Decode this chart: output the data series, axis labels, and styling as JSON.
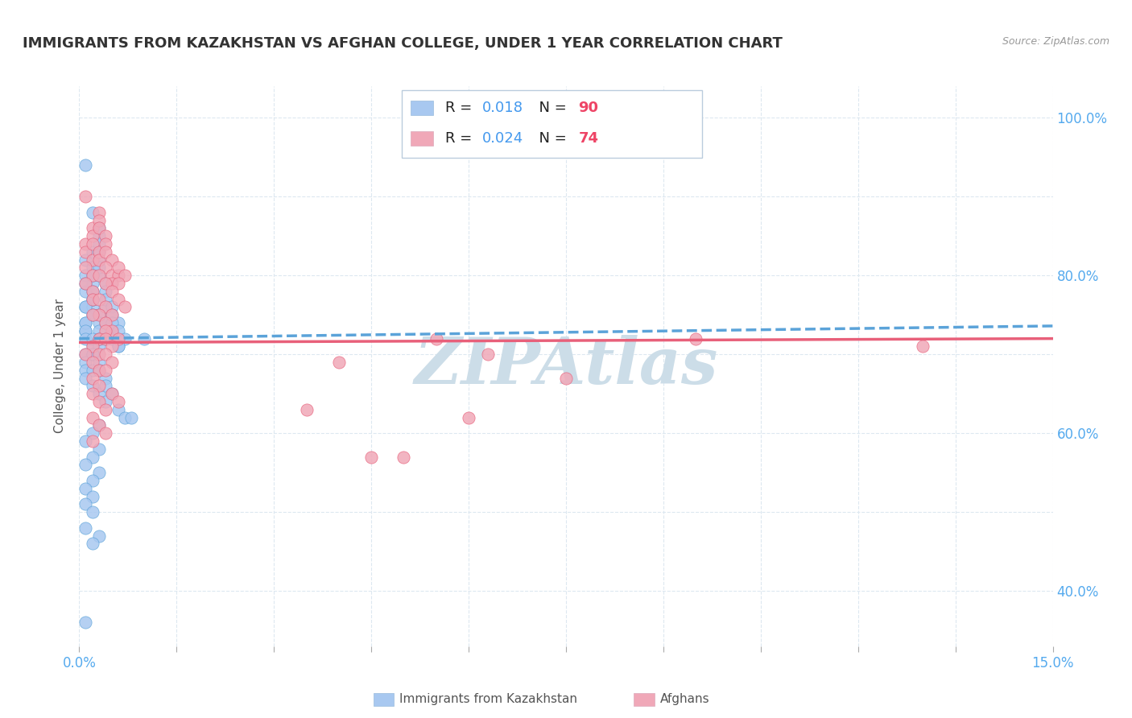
{
  "title": "IMMIGRANTS FROM KAZAKHSTAN VS AFGHAN COLLEGE, UNDER 1 YEAR CORRELATION CHART",
  "source": "Source: ZipAtlas.com",
  "ylabel": "College, Under 1 year",
  "xlim": [
    0.0,
    0.15
  ],
  "ylim": [
    0.33,
    1.04
  ],
  "xticks": [
    0.0,
    0.015,
    0.03,
    0.045,
    0.06,
    0.075,
    0.09,
    0.105,
    0.12,
    0.135,
    0.15
  ],
  "xtick_labels": [
    "0.0%",
    "",
    "",
    "",
    "",
    "",
    "",
    "",
    "",
    "",
    "15.0%"
  ],
  "yticks_right": [
    0.4,
    0.6,
    0.8,
    1.0
  ],
  "ytick_labels_right": [
    "40.0%",
    "60.0%",
    "80.0%",
    "100.0%"
  ],
  "series1_name": "Immigrants from Kazakhstan",
  "series1_color": "#a8c8f0",
  "series1_line_color": "#5ba3d9",
  "series1_R": 0.018,
  "series1_N": 90,
  "series2_name": "Afghans",
  "series2_color": "#f0a8b8",
  "series2_line_color": "#e8607a",
  "series2_R": 0.024,
  "series2_N": 74,
  "legend_color": "#4499ee",
  "legend_N_color": "#ee4466",
  "watermark": "ZIPAtlas",
  "watermark_color": "#ccdde8",
  "background_color": "#ffffff",
  "grid_color": "#dde8f0",
  "title_fontsize": 13,
  "axis_label_color": "#55aaee",
  "scatter1_x": [
    0.001,
    0.002,
    0.001,
    0.003,
    0.002,
    0.001,
    0.002,
    0.003,
    0.001,
    0.002,
    0.003,
    0.002,
    0.001,
    0.002,
    0.003,
    0.001,
    0.002,
    0.001,
    0.003,
    0.002,
    0.001,
    0.002,
    0.003,
    0.002,
    0.001,
    0.002,
    0.001,
    0.003,
    0.002,
    0.001,
    0.004,
    0.003,
    0.004,
    0.003,
    0.004,
    0.003,
    0.004,
    0.003,
    0.005,
    0.004,
    0.005,
    0.004,
    0.005,
    0.006,
    0.005,
    0.006,
    0.005,
    0.006,
    0.007,
    0.006,
    0.001,
    0.002,
    0.001,
    0.002,
    0.003,
    0.002,
    0.001,
    0.003,
    0.002,
    0.001,
    0.002,
    0.003,
    0.001,
    0.002,
    0.003,
    0.004,
    0.003,
    0.004,
    0.005,
    0.004,
    0.006,
    0.007,
    0.003,
    0.002,
    0.001,
    0.003,
    0.008,
    0.002,
    0.001,
    0.003,
    0.002,
    0.001,
    0.002,
    0.001,
    0.002,
    0.001,
    0.003,
    0.002,
    0.001,
    0.01
  ],
  "scatter1_y": [
    0.94,
    0.88,
    0.82,
    0.85,
    0.83,
    0.8,
    0.79,
    0.86,
    0.78,
    0.81,
    0.84,
    0.77,
    0.76,
    0.75,
    0.8,
    0.74,
    0.78,
    0.73,
    0.82,
    0.76,
    0.79,
    0.77,
    0.81,
    0.75,
    0.74,
    0.8,
    0.73,
    0.83,
    0.77,
    0.76,
    0.79,
    0.75,
    0.78,
    0.72,
    0.76,
    0.74,
    0.77,
    0.73,
    0.76,
    0.74,
    0.73,
    0.72,
    0.75,
    0.74,
    0.72,
    0.71,
    0.74,
    0.73,
    0.72,
    0.71,
    0.72,
    0.71,
    0.7,
    0.72,
    0.71,
    0.7,
    0.69,
    0.72,
    0.7,
    0.68,
    0.68,
    0.69,
    0.67,
    0.66,
    0.68,
    0.67,
    0.65,
    0.66,
    0.65,
    0.64,
    0.63,
    0.62,
    0.61,
    0.6,
    0.59,
    0.58,
    0.62,
    0.57,
    0.56,
    0.55,
    0.54,
    0.53,
    0.52,
    0.51,
    0.5,
    0.48,
    0.47,
    0.46,
    0.36,
    0.72
  ],
  "scatter2_x": [
    0.001,
    0.002,
    0.001,
    0.003,
    0.002,
    0.001,
    0.002,
    0.003,
    0.001,
    0.002,
    0.003,
    0.002,
    0.004,
    0.003,
    0.004,
    0.003,
    0.004,
    0.005,
    0.004,
    0.005,
    0.006,
    0.005,
    0.006,
    0.007,
    0.006,
    0.001,
    0.002,
    0.003,
    0.002,
    0.004,
    0.003,
    0.005,
    0.004,
    0.006,
    0.005,
    0.007,
    0.003,
    0.004,
    0.002,
    0.005,
    0.004,
    0.006,
    0.003,
    0.002,
    0.004,
    0.005,
    0.003,
    0.001,
    0.002,
    0.004,
    0.003,
    0.005,
    0.002,
    0.003,
    0.004,
    0.002,
    0.003,
    0.005,
    0.004,
    0.006,
    0.002,
    0.003,
    0.004,
    0.002,
    0.055,
    0.063,
    0.04,
    0.035,
    0.13,
    0.095,
    0.075,
    0.045,
    0.05,
    0.06
  ],
  "scatter2_y": [
    0.9,
    0.86,
    0.84,
    0.88,
    0.85,
    0.83,
    0.82,
    0.87,
    0.81,
    0.84,
    0.86,
    0.8,
    0.85,
    0.83,
    0.84,
    0.82,
    0.83,
    0.82,
    0.81,
    0.8,
    0.8,
    0.79,
    0.81,
    0.8,
    0.79,
    0.79,
    0.78,
    0.8,
    0.77,
    0.79,
    0.77,
    0.78,
    0.76,
    0.77,
    0.75,
    0.76,
    0.75,
    0.74,
    0.75,
    0.73,
    0.73,
    0.72,
    0.72,
    0.71,
    0.72,
    0.71,
    0.7,
    0.7,
    0.69,
    0.7,
    0.68,
    0.69,
    0.67,
    0.66,
    0.68,
    0.65,
    0.64,
    0.65,
    0.63,
    0.64,
    0.62,
    0.61,
    0.6,
    0.59,
    0.72,
    0.7,
    0.69,
    0.63,
    0.71,
    0.72,
    0.67,
    0.57,
    0.57,
    0.62
  ]
}
